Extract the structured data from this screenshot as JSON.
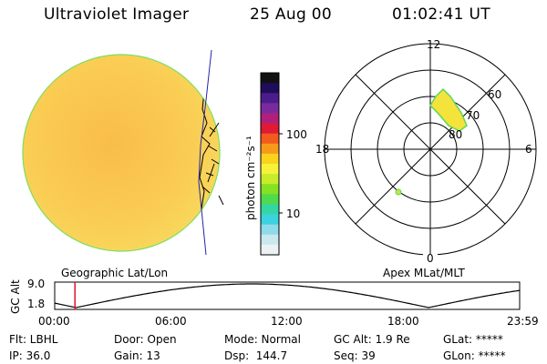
{
  "header": {
    "instrument": "Ultraviolet Imager",
    "date": "25 Aug 00",
    "time": "01:02:41 UT"
  },
  "colorbar": {
    "unit_label": "photon cm⁻²s⁻¹",
    "tick_labels": [
      "100",
      "10"
    ],
    "colors": [
      "#111111",
      "#1e0d5a",
      "#4b1c8c",
      "#7b2a9e",
      "#b0207a",
      "#e01a35",
      "#f25a1e",
      "#f79a1a",
      "#fbd31c",
      "#f6f23a",
      "#c6ec2a",
      "#84e223",
      "#4fdb4d",
      "#34d7a4",
      "#3cd2df",
      "#8fdbe9",
      "#c9e8ef",
      "#ecf2f4"
    ]
  },
  "left_panel": {
    "caption": "Geographic Lat/Lon"
  },
  "polar_plot": {
    "caption": "Apex MLat/MLT",
    "mlt_labels": {
      "top": "12",
      "bottom": "0",
      "left": "18",
      "right": "6"
    },
    "lat_labels": [
      "60",
      "70",
      "80"
    ]
  },
  "altitude_plot": {
    "ylabel": "GC Alt",
    "yticks": [
      "9.0",
      "1.8"
    ],
    "xticks": [
      "00:00",
      "06:00",
      "12:00",
      "18:00",
      "23:59"
    ],
    "ylim": [
      1.8,
      9.0
    ],
    "current_marker_hours": 1.045,
    "marker_color": "#e0142a"
  },
  "info": {
    "row1": [
      "Flt: LBHL",
      "Door: Open",
      "Mode: Normal",
      "GC Alt: 1.9 Re",
      "GLat: *****"
    ],
    "row2": [
      "IP: 36.0",
      "Gain: 13",
      "Dsp:  144.7",
      "Seq: 39",
      "GLon: *****"
    ]
  },
  "colors": {
    "disk_fill": "#f8c94a",
    "disk_edge": "#6fe05c",
    "aurora": "#f3e33a"
  }
}
